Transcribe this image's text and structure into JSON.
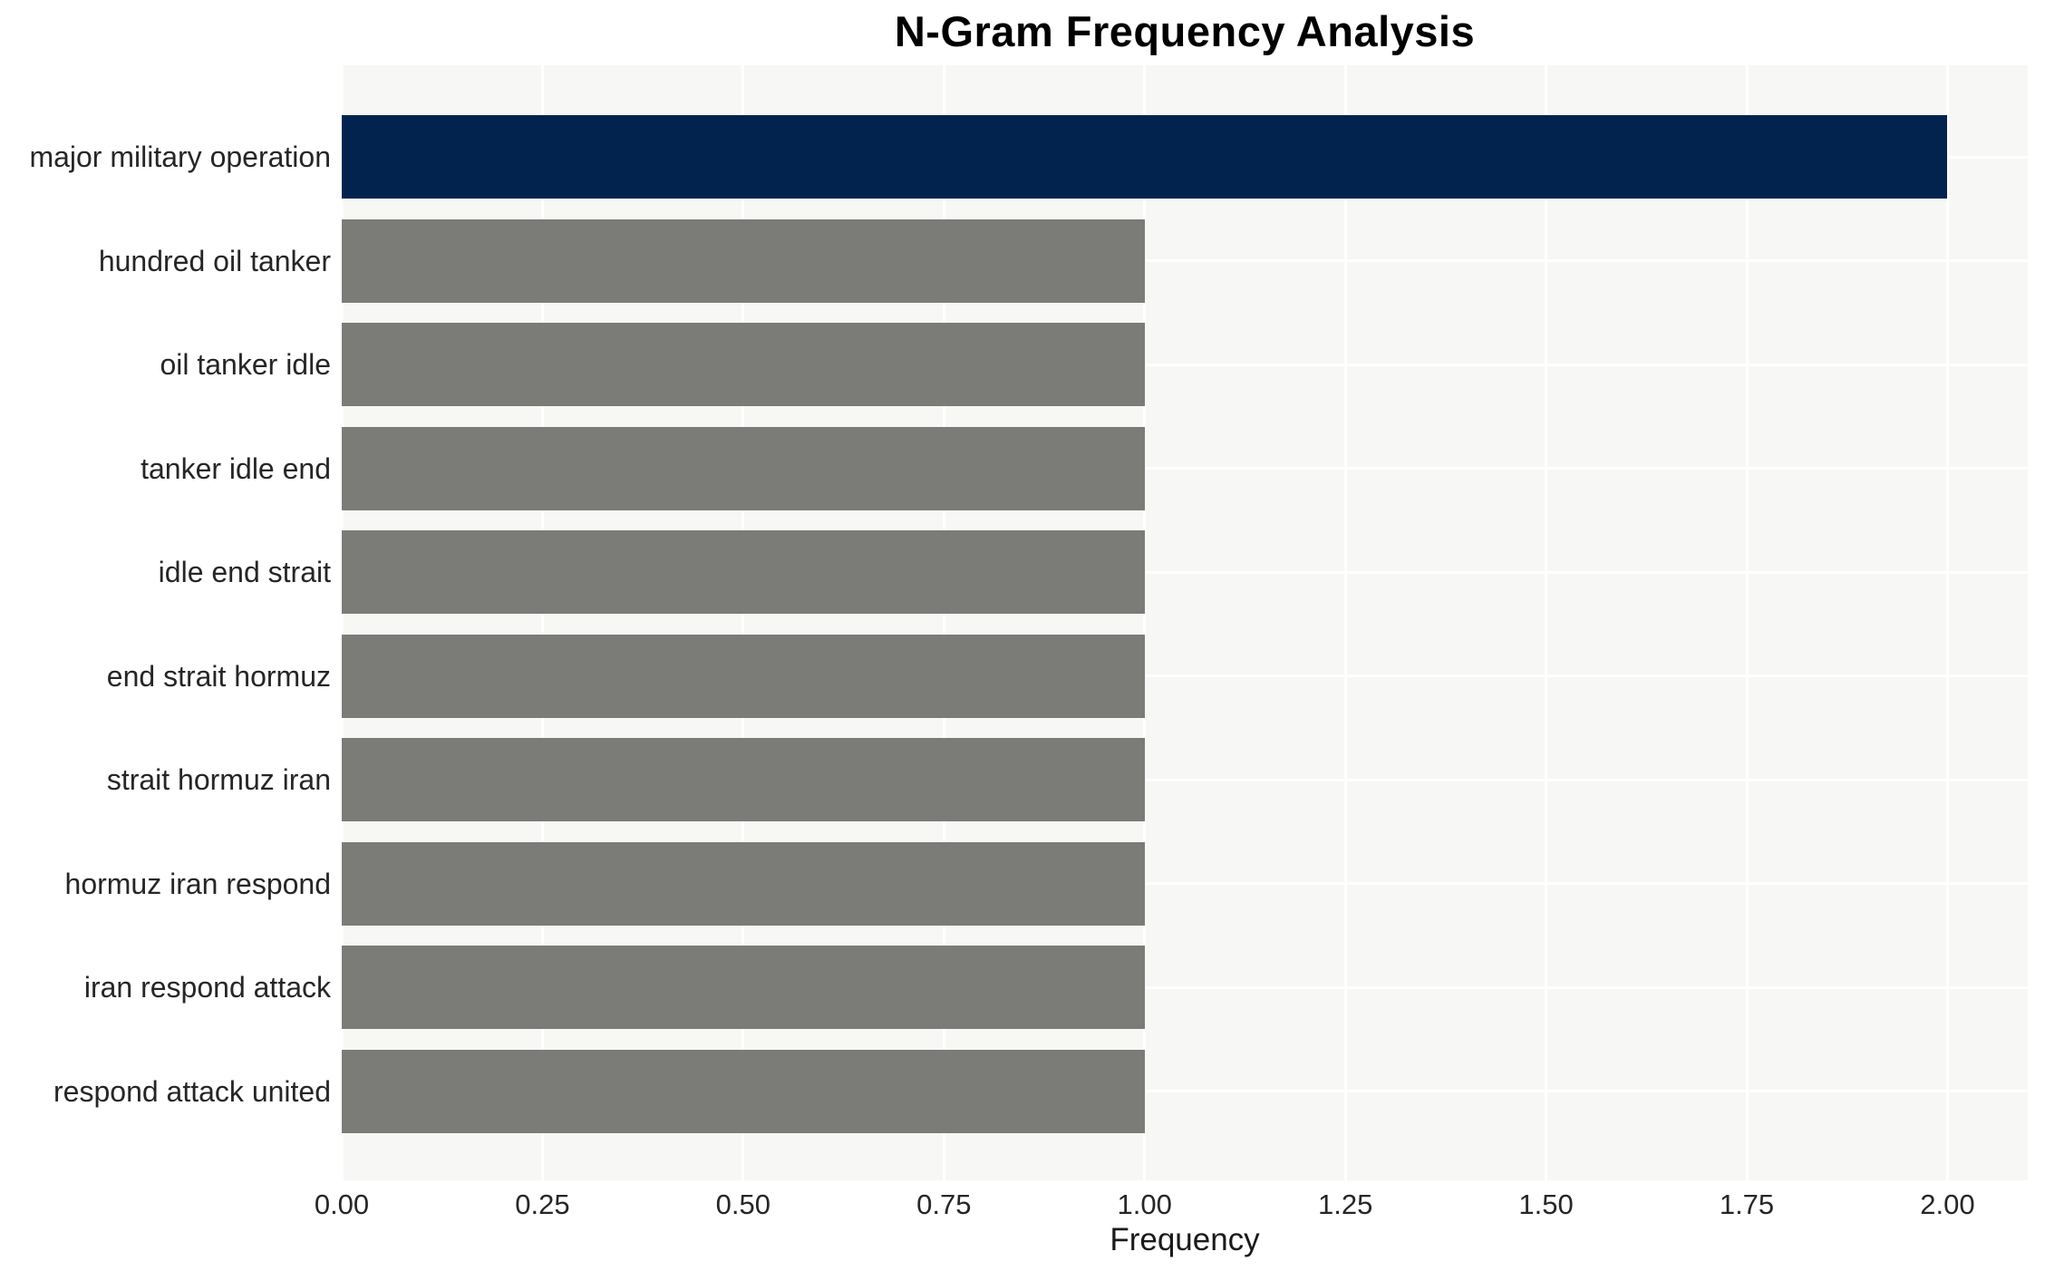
{
  "chart_data": {
    "type": "bar",
    "orientation": "horizontal",
    "title": "N-Gram Frequency Analysis",
    "xlabel": "Frequency",
    "ylabel": "",
    "categories": [
      "major military operation",
      "hundred oil tanker",
      "oil tanker idle",
      "tanker idle end",
      "idle end strait",
      "end strait hormuz",
      "strait hormuz iran",
      "hormuz iran respond",
      "iran respond attack",
      "respond attack united"
    ],
    "values": [
      2.0,
      1.0,
      1.0,
      1.0,
      1.0,
      1.0,
      1.0,
      1.0,
      1.0,
      1.0
    ],
    "bar_colors": [
      "#02234e",
      "#7b7b77",
      "#7b7b77",
      "#7b7b77",
      "#7b7b77",
      "#7b7b77",
      "#7b7b77",
      "#7b7b77",
      "#7b7b77",
      "#7b7b77"
    ],
    "xlim": [
      0,
      2.1
    ],
    "xticks": [
      0,
      0.25,
      0.5,
      0.75,
      1.0,
      1.25,
      1.5,
      1.75,
      2.0
    ],
    "xtick_labels": [
      "0.00",
      "0.25",
      "0.50",
      "0.75",
      "1.00",
      "1.25",
      "1.50",
      "1.75",
      "2.00"
    ],
    "grid": true,
    "legend": false,
    "colors": {
      "plot_background": "#f7f7f5",
      "grid_line": "#ffffff",
      "tick_text": "#262626",
      "title_text": "#000000"
    }
  }
}
